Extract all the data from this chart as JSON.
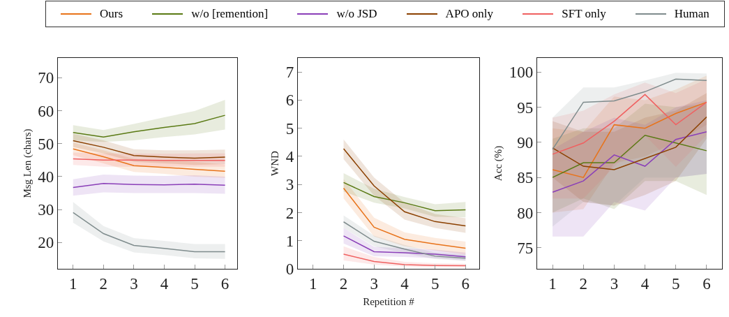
{
  "chart_data": [
    {
      "type": "line",
      "ylabel": "Msg Len (chars)",
      "legend": "top",
      "x": [
        1,
        2,
        3,
        4,
        5,
        6
      ],
      "xlim": [
        0.5,
        6.4
      ],
      "xticks": [
        1,
        2,
        3,
        4,
        5,
        6
      ],
      "ylim": [
        12,
        76
      ],
      "yticks": [
        20,
        30,
        40,
        50,
        60,
        70
      ],
      "grid": false,
      "series": [
        {
          "name": "Ours",
          "color": "#e8731a",
          "values": [
            48.4,
            46,
            43.3,
            42.8,
            42.2,
            41.6
          ],
          "lower": [
            46.5,
            44,
            41.4,
            40.8,
            40,
            39.6
          ],
          "upper": [
            50.3,
            48,
            45.3,
            45,
            44.5,
            43.7
          ]
        },
        {
          "name": "w/o [remention]",
          "color": "#5a7a14",
          "values": [
            53.4,
            52,
            53.6,
            54.9,
            56.1,
            58.6
          ],
          "lower": [
            51,
            50.5,
            51,
            52,
            52.8,
            54.3
          ],
          "upper": [
            55.6,
            54.1,
            56,
            58,
            59.9,
            63.3
          ]
        },
        {
          "name": "w/o JSD",
          "color": "#8a3fb8",
          "values": [
            36.7,
            37.9,
            37.6,
            37.5,
            37.7,
            37.4
          ],
          "lower": [
            34.2,
            35.2,
            35,
            35,
            35,
            34.8
          ],
          "upper": [
            39.2,
            40.6,
            40.3,
            40.2,
            40.4,
            40
          ]
        },
        {
          "name": "APO only",
          "color": "#8b4000",
          "values": [
            50.9,
            48.9,
            46.4,
            45.9,
            45.6,
            45.9
          ],
          "lower": [
            49,
            47,
            44.5,
            44,
            43.5,
            43.8
          ],
          "upper": [
            53,
            51,
            48.3,
            48,
            48,
            48.2
          ]
        },
        {
          "name": "SFT only",
          "color": "#f06060",
          "values": [
            45.4,
            45,
            45,
            44.9,
            44.9,
            44.9
          ],
          "lower": [
            43.5,
            43,
            43,
            43,
            43,
            43
          ],
          "upper": [
            47.3,
            47,
            47,
            46.9,
            47,
            47
          ]
        },
        {
          "name": "Human",
          "color": "#7f8c8d",
          "values": [
            29.1,
            22.7,
            19.1,
            18.2,
            17.2,
            17.2
          ],
          "lower": [
            26,
            20.3,
            17,
            16.2,
            15.2,
            15
          ],
          "upper": [
            32.3,
            25,
            21.3,
            20.5,
            19.5,
            19.5
          ]
        }
      ]
    },
    {
      "type": "line",
      "ylabel": "WND",
      "xlabel": "Repetition #",
      "x": [
        2,
        3,
        4,
        5,
        6
      ],
      "xlim": [
        0.5,
        6.45
      ],
      "xticks": [
        1,
        2,
        3,
        4,
        5,
        6
      ],
      "ylim": [
        0,
        7.5
      ],
      "yticks": [
        0,
        1,
        2,
        3,
        4,
        5,
        6,
        7
      ],
      "grid": false,
      "series": [
        {
          "color": "#e8731a",
          "values": [
            2.87,
            1.48,
            1.05,
            0.88,
            0.73
          ],
          "lower": [
            2.5,
            1.15,
            0.8,
            0.65,
            0.5
          ],
          "upper": [
            3.2,
            1.82,
            1.3,
            1.1,
            0.97
          ]
        },
        {
          "color": "#5a7a14",
          "values": [
            3.07,
            2.57,
            2.35,
            2.07,
            2.1
          ],
          "lower": [
            2.75,
            2.35,
            2.15,
            1.85,
            1.83
          ],
          "upper": [
            3.4,
            2.85,
            2.55,
            2.3,
            2.38
          ]
        },
        {
          "color": "#8a3fb8",
          "values": [
            1.17,
            0.61,
            0.57,
            0.52,
            0.43
          ],
          "lower": [
            0.9,
            0.45,
            0.42,
            0.38,
            0.3
          ],
          "upper": [
            1.45,
            0.78,
            0.73,
            0.68,
            0.58
          ]
        },
        {
          "color": "#8b4000",
          "values": [
            4.27,
            2.95,
            2.03,
            1.68,
            1.53
          ],
          "lower": [
            3.9,
            2.6,
            1.75,
            1.45,
            1.28
          ],
          "upper": [
            4.6,
            3.25,
            2.35,
            1.95,
            1.8
          ]
        },
        {
          "color": "#f06060",
          "values": [
            0.52,
            0.26,
            0.15,
            0.12,
            0.11
          ],
          "lower": [
            0.3,
            0.15,
            0.08,
            0.07,
            0.06
          ],
          "upper": [
            0.8,
            0.42,
            0.25,
            0.2,
            0.18
          ]
        },
        {
          "color": "#7f8c8d",
          "values": [
            1.67,
            0.98,
            0.7,
            0.45,
            0.38
          ],
          "lower": [
            1.45,
            0.8,
            0.55,
            0.35,
            0.28
          ],
          "upper": [
            1.9,
            1.18,
            0.85,
            0.58,
            0.5
          ]
        }
      ]
    },
    {
      "type": "line",
      "ylabel": "Acc (%)",
      "x": [
        1,
        2,
        3,
        4,
        5,
        6
      ],
      "xlim": [
        0.5,
        6.5
      ],
      "xticks": [
        1,
        2,
        3,
        4,
        5,
        6
      ],
      "ylim": [
        72,
        102
      ],
      "yticks": [
        75,
        80,
        85,
        90,
        95,
        100
      ],
      "grid": false,
      "series": [
        {
          "color": "#e8731a",
          "values": [
            86.1,
            85,
            92.5,
            92,
            94.1,
            95.7
          ],
          "lower": [
            80,
            80.5,
            87,
            88,
            90,
            92.5
          ],
          "upper": [
            92,
            91.5,
            96.5,
            96,
            97.5,
            99.5
          ]
        },
        {
          "color": "#5a7a14",
          "values": [
            85,
            87.1,
            87.1,
            91,
            89.9,
            88.8
          ],
          "lower": [
            80,
            82,
            80.5,
            84.5,
            84.5,
            82.5
          ],
          "upper": [
            90.5,
            92,
            92,
            95.5,
            95,
            95.5
          ]
        },
        {
          "color": "#8a3fb8",
          "values": [
            82.9,
            84.5,
            88.2,
            86.6,
            90.4,
            91.5
          ],
          "lower": [
            76.6,
            76.6,
            81.5,
            80.3,
            85,
            85.5
          ],
          "upper": [
            89,
            91.5,
            93.5,
            92.5,
            95,
            96
          ]
        },
        {
          "color": "#8b4000",
          "values": [
            89.2,
            86.6,
            86.1,
            87.7,
            89.3,
            93.6
          ],
          "lower": [
            85,
            81.5,
            81,
            82.5,
            84.5,
            90.5
          ],
          "upper": [
            93,
            91.5,
            91.5,
            93.5,
            94.5,
            97
          ]
        },
        {
          "color": "#f06060",
          "values": [
            88.3,
            89.9,
            93,
            96.8,
            92.5,
            95.7
          ],
          "lower": [
            82,
            82,
            86.5,
            91,
            86.5,
            91
          ],
          "upper": [
            93.5,
            94.5,
            96.8,
            98.5,
            97,
            99
          ]
        },
        {
          "color": "#7f8c8d",
          "values": [
            89,
            95.7,
            95.9,
            97.2,
            99,
            98.8
          ],
          "lower": [
            78,
            81.5,
            81,
            85,
            85,
            85.5
          ],
          "upper": [
            93.5,
            97.8,
            97.8,
            98.8,
            99.9,
            99.8
          ]
        }
      ]
    }
  ]
}
